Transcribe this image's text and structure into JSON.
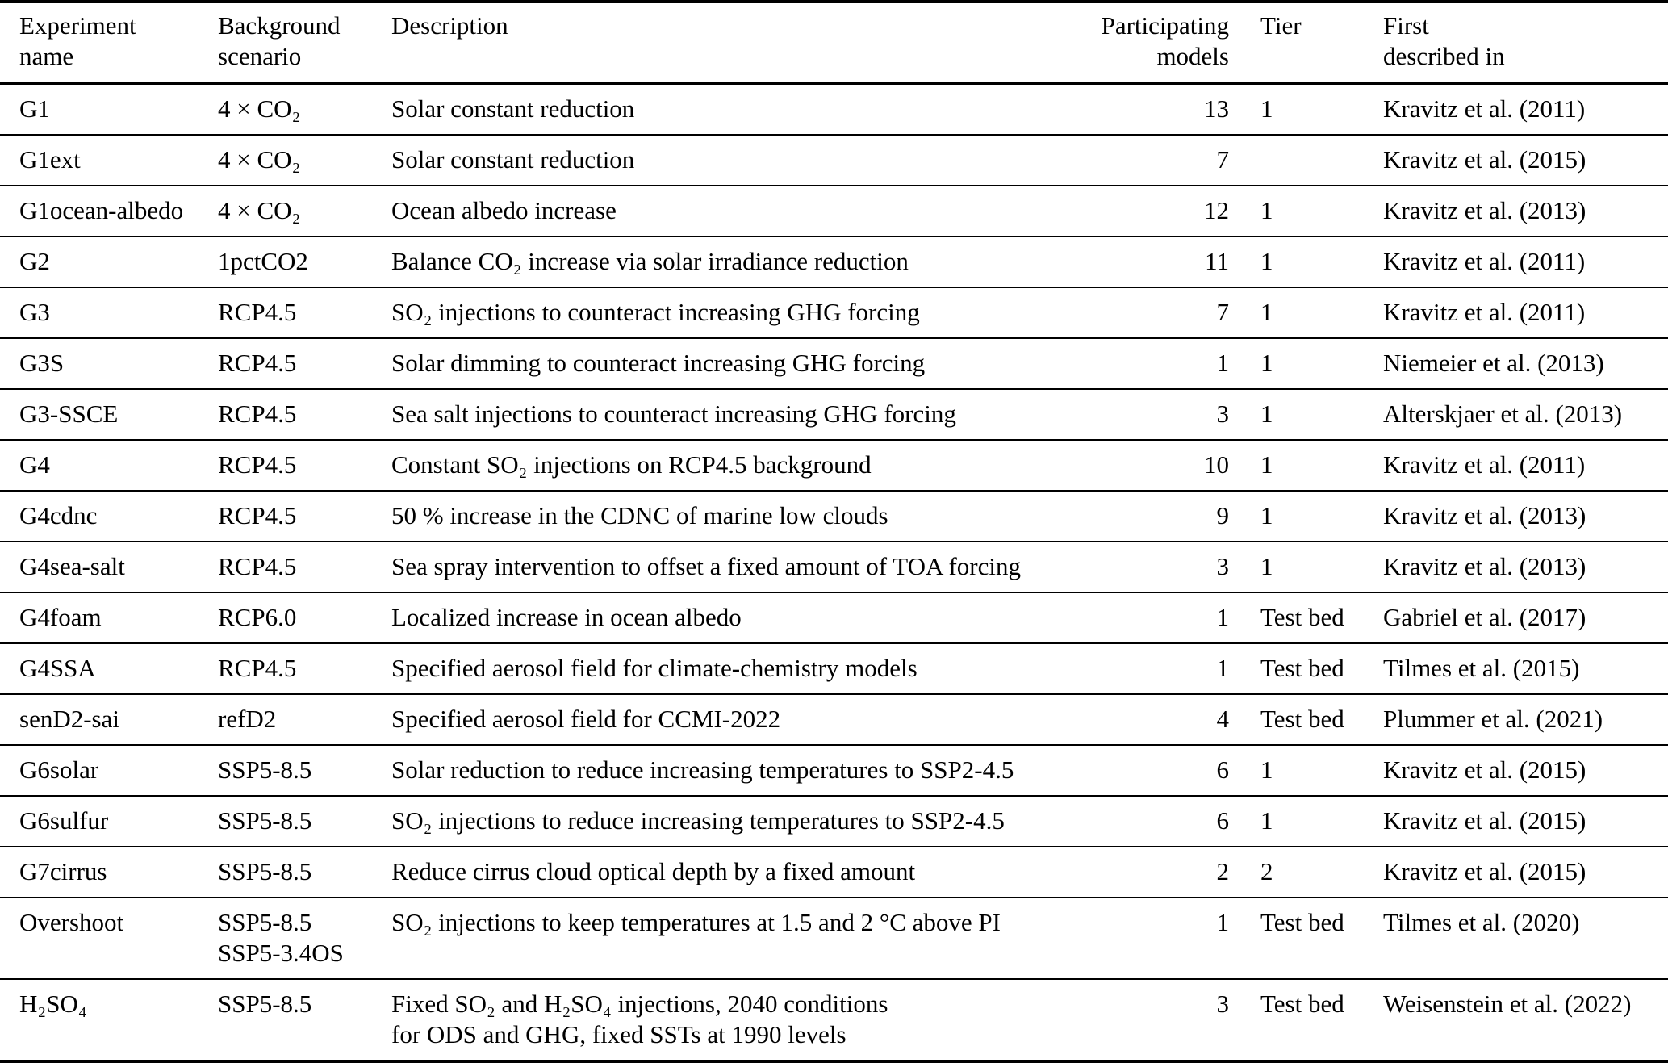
{
  "colors": {
    "background": "#ffffff",
    "text": "#000000",
    "rule": "#000000"
  },
  "table": {
    "columns": [
      {
        "label": "Experiment\nname"
      },
      {
        "label": "Background\nscenario"
      },
      {
        "label": "Description"
      },
      {
        "label": "Participating\nmodels"
      },
      {
        "label": "Tier"
      },
      {
        "label": "First\ndescribed in"
      }
    ],
    "rows": [
      {
        "experiment": "G1",
        "background": "4 × CO₂",
        "description": "Solar constant reduction",
        "models": "13",
        "tier": "1",
        "first_described_in": "Kravitz et al. (2011)"
      },
      {
        "experiment": "G1ext",
        "background": "4 × CO₂",
        "description": "Solar constant reduction",
        "models": "7",
        "tier": "",
        "first_described_in": "Kravitz et al. (2015)"
      },
      {
        "experiment": "G1ocean-albedo",
        "background": "4 × CO₂",
        "description": "Ocean albedo increase",
        "models": "12",
        "tier": "1",
        "first_described_in": "Kravitz et al. (2013)"
      },
      {
        "experiment": "G2",
        "background": "1pctCO2",
        "description": "Balance CO₂ increase via solar irradiance reduction",
        "models": "11",
        "tier": "1",
        "first_described_in": "Kravitz et al. (2011)"
      },
      {
        "experiment": "G3",
        "background": "RCP4.5",
        "description": "SO₂ injections to counteract increasing GHG forcing",
        "models": "7",
        "tier": "1",
        "first_described_in": "Kravitz et al. (2011)"
      },
      {
        "experiment": "G3S",
        "background": "RCP4.5",
        "description": "Solar dimming to counteract increasing GHG forcing",
        "models": "1",
        "tier": "1",
        "first_described_in": "Niemeier et al. (2013)"
      },
      {
        "experiment": "G3-SSCE",
        "background": "RCP4.5",
        "description": "Sea salt injections to counteract increasing GHG forcing",
        "models": "3",
        "tier": "1",
        "first_described_in": "Alterskjaer et al. (2013)"
      },
      {
        "experiment": "G4",
        "background": "RCP4.5",
        "description": "Constant SO₂ injections on RCP4.5 background",
        "models": "10",
        "tier": "1",
        "first_described_in": "Kravitz et al. (2011)"
      },
      {
        "experiment": "G4cdnc",
        "background": "RCP4.5",
        "description": "50 % increase in the CDNC of marine low clouds",
        "models": "9",
        "tier": "1",
        "first_described_in": "Kravitz et al. (2013)"
      },
      {
        "experiment": "G4sea-salt",
        "background": "RCP4.5",
        "description": "Sea spray intervention to offset a fixed amount of TOA forcing",
        "models": "3",
        "tier": "1",
        "first_described_in": "Kravitz et al. (2013)"
      },
      {
        "experiment": "G4foam",
        "background": "RCP6.0",
        "description": "Localized increase in ocean albedo",
        "models": "1",
        "tier": "Test bed",
        "first_described_in": "Gabriel et al. (2017)"
      },
      {
        "experiment": "G4SSA",
        "background": "RCP4.5",
        "description": "Specified aerosol field for climate-chemistry models",
        "models": "1",
        "tier": "Test bed",
        "first_described_in": "Tilmes et al. (2015)"
      },
      {
        "experiment": "senD2-sai",
        "background": "refD2",
        "description": "Specified aerosol field for CCMI-2022",
        "models": "4",
        "tier": "Test bed",
        "first_described_in": "Plummer et al. (2021)"
      },
      {
        "experiment": "G6solar",
        "background": "SSP5-8.5",
        "description": "Solar reduction to reduce increasing temperatures to SSP2-4.5",
        "models": "6",
        "tier": "1",
        "first_described_in": "Kravitz et al. (2015)"
      },
      {
        "experiment": "G6sulfur",
        "background": "SSP5-8.5",
        "description": "SO₂ injections to reduce increasing temperatures to SSP2-4.5",
        "models": "6",
        "tier": "1",
        "first_described_in": "Kravitz et al. (2015)"
      },
      {
        "experiment": "G7cirrus",
        "background": "SSP5-8.5",
        "description": "Reduce cirrus cloud optical depth by a fixed amount",
        "models": "2",
        "tier": "2",
        "first_described_in": "Kravitz et al. (2015)"
      },
      {
        "experiment": "Overshoot",
        "background": "SSP5-8.5\nSSP5-3.4OS",
        "description": "SO₂ injections to keep temperatures at 1.5 and 2 °C above PI",
        "models": "1",
        "tier": "Test bed",
        "first_described_in": "Tilmes et al. (2020)"
      },
      {
        "experiment": "H₂SO₄",
        "background": "SSP5-8.5",
        "description": "Fixed SO₂ and H₂SO₄ injections, 2040 conditions\nfor ODS and GHG, fixed SSTs at 1990 levels",
        "models": "3",
        "tier": "Test bed",
        "first_described_in": "Weisenstein et al. (2022)"
      }
    ]
  }
}
